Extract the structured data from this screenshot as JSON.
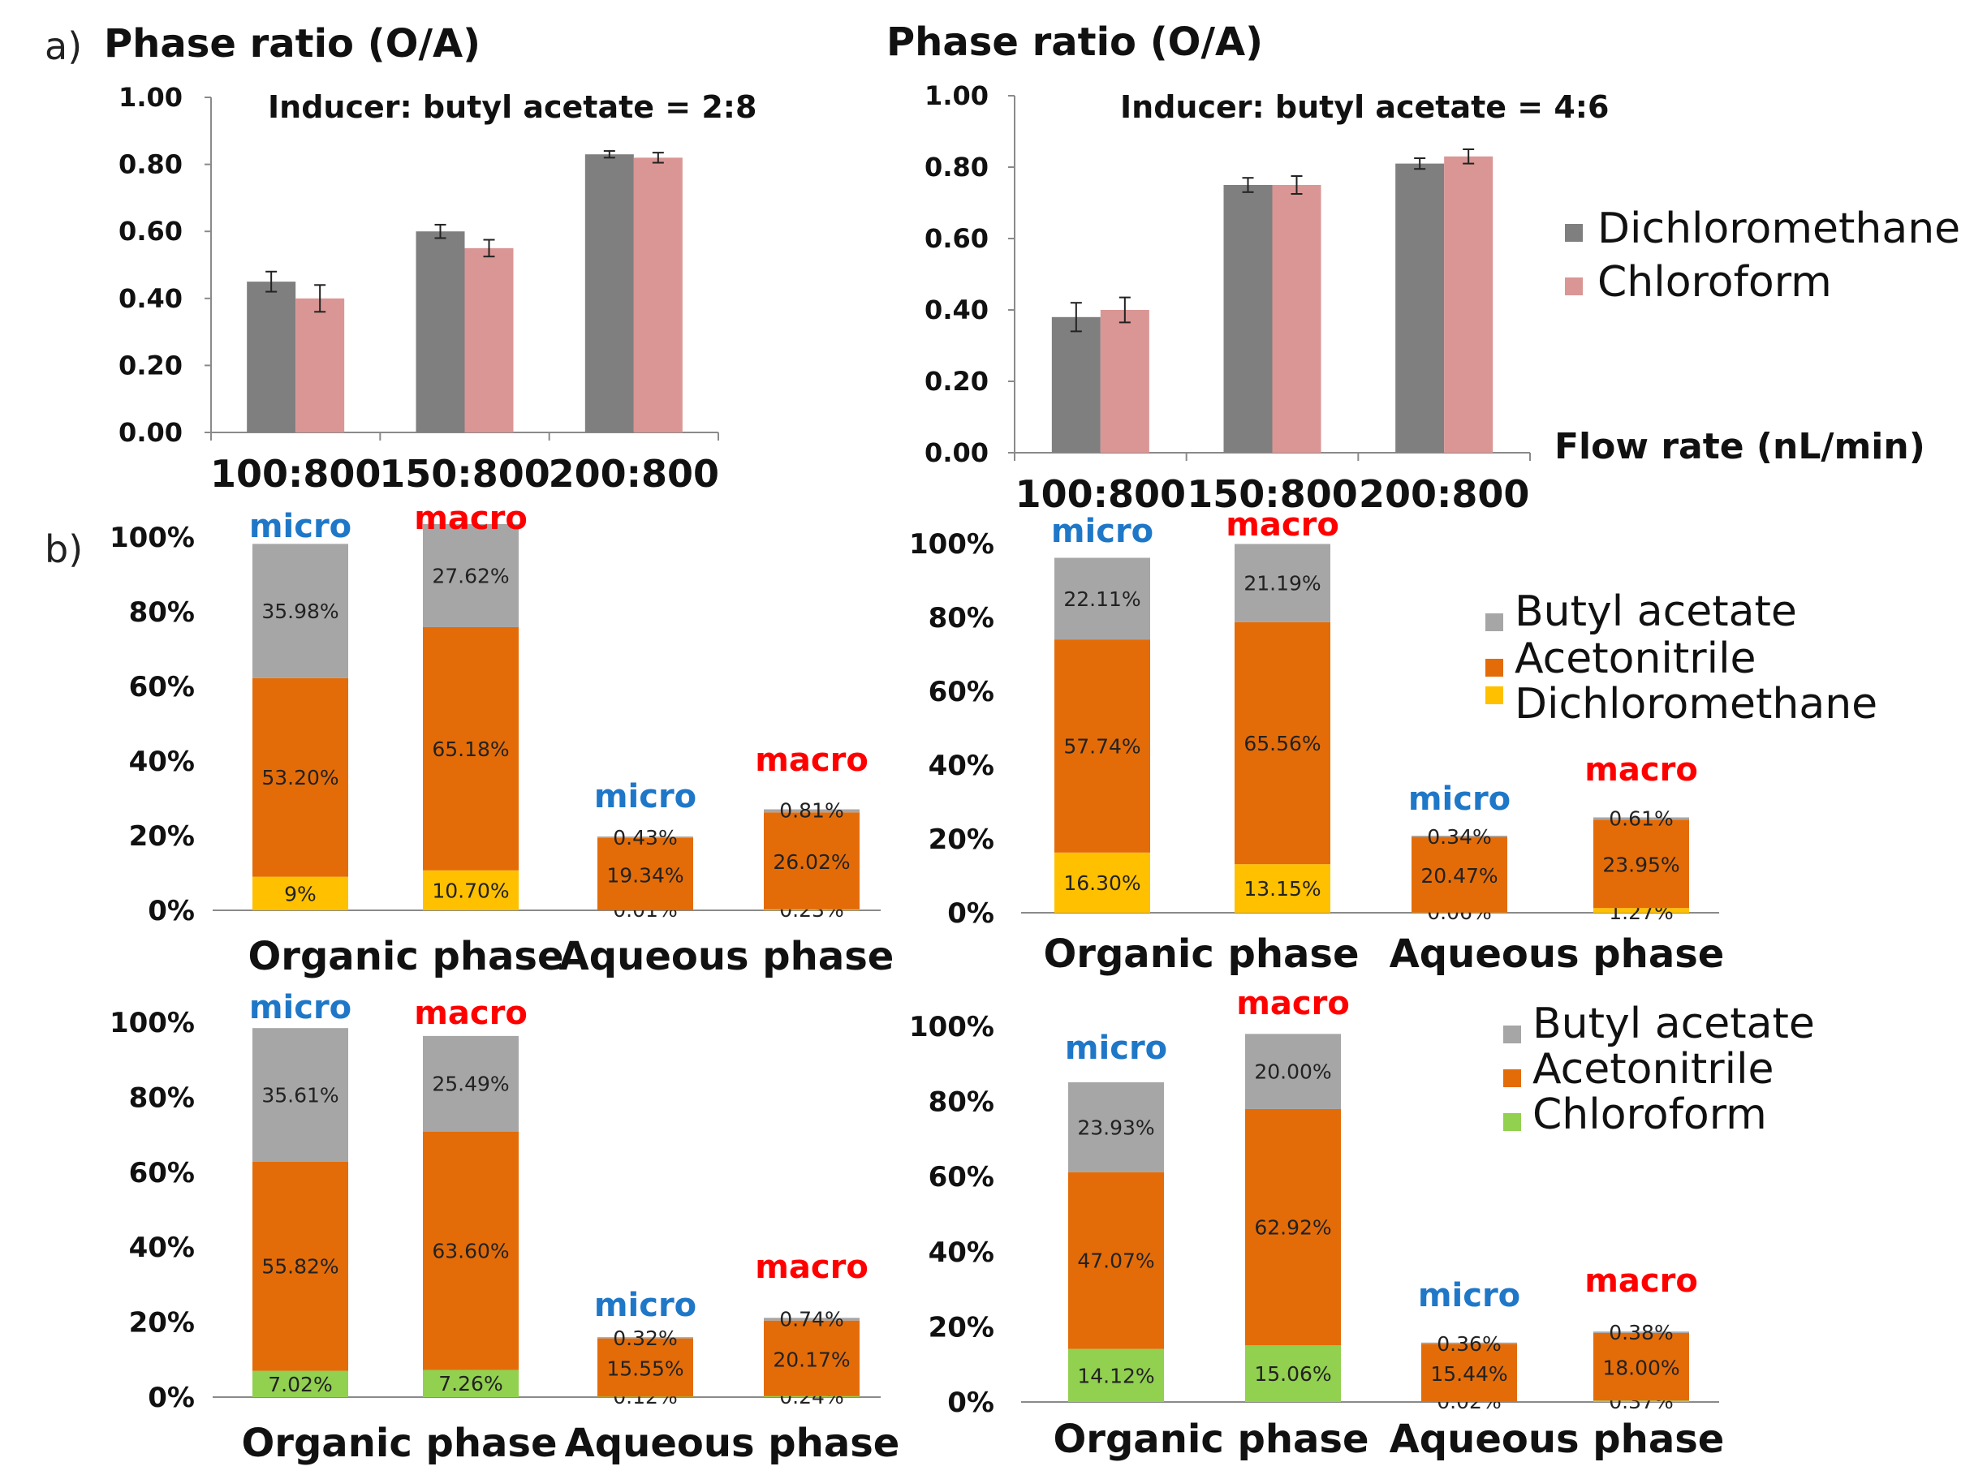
{
  "panel_labels": {
    "a": "a)",
    "b": "b)"
  },
  "colors": {
    "dichloromethane": "#7f7f7f",
    "chloroform": "#d99694",
    "butyl_acetate": "#a6a6a6",
    "acetonitrile": "#e36c09",
    "dcm_stack": "#ffc000",
    "chcl3_stack": "#92d050",
    "micro": "#1f77c8",
    "macro": "#ff0000"
  },
  "legends": {
    "ratio": [
      "Dichloromethane",
      "Chloroform"
    ],
    "comp_dcm": [
      "Butyl acetate",
      "Acetonitrile",
      "Dichloromethane"
    ],
    "comp_chcl3": [
      "Butyl acetate",
      "Acetonitrile",
      "Chloroform"
    ]
  },
  "chart_data": [
    {
      "type": "bar",
      "title": "Phase ratio (O/A)",
      "subtitle": "Inducer: butyl acetate = 2:8",
      "categories": [
        "100:800",
        "150:800",
        "200:800"
      ],
      "series": [
        {
          "name": "Dichloromethane",
          "values": [
            0.45,
            0.6,
            0.83
          ],
          "errors": [
            0.03,
            0.02,
            0.01
          ]
        },
        {
          "name": "Chloroform",
          "values": [
            0.4,
            0.55,
            0.82
          ],
          "errors": [
            0.04,
            0.025,
            0.015
          ]
        }
      ],
      "ylim": [
        0,
        1.0
      ],
      "yticks": [
        "0.00",
        "0.20",
        "0.40",
        "0.60",
        "0.80",
        "1.00"
      ],
      "xlabel": ""
    },
    {
      "type": "bar",
      "title": "Phase ratio (O/A)",
      "subtitle": "Inducer: butyl acetate = 4:6",
      "categories": [
        "100:800",
        "150:800",
        "200:800"
      ],
      "series": [
        {
          "name": "Dichloromethane",
          "values": [
            0.38,
            0.75,
            0.81
          ],
          "errors": [
            0.04,
            0.02,
            0.015
          ]
        },
        {
          "name": "Chloroform",
          "values": [
            0.4,
            0.75,
            0.83
          ],
          "errors": [
            0.035,
            0.025,
            0.02
          ]
        }
      ],
      "ylim": [
        0,
        1.0
      ],
      "yticks": [
        "0.00",
        "0.20",
        "0.40",
        "0.60",
        "0.80",
        "1.00"
      ],
      "xlabel": "Flow rate (nL/min)"
    },
    {
      "type": "bar",
      "stacked": true,
      "solvent": "Dichloromethane",
      "groups": [
        "Organic phase",
        "Aqueous phase"
      ],
      "yticks": [
        "0%",
        "20%",
        "40%",
        "60%",
        "80%",
        "100%"
      ],
      "bars": [
        {
          "tag": "micro",
          "solvent": 9.0,
          "acetonitrile": 53.2,
          "butyl": 35.98,
          "labels": [
            "9%",
            "53.20%",
            "35.98%"
          ]
        },
        {
          "tag": "macro",
          "solvent": 10.7,
          "acetonitrile": 65.18,
          "butyl": 27.62,
          "labels": [
            "10.70%",
            "65.18%",
            "27.62%"
          ]
        },
        {
          "tag": "micro",
          "solvent": 0.01,
          "acetonitrile": 19.34,
          "butyl": 0.43,
          "labels": [
            "0.01%",
            "19.34%",
            "0.43%"
          ]
        },
        {
          "tag": "macro",
          "solvent": 0.23,
          "acetonitrile": 26.02,
          "butyl": 0.81,
          "labels": [
            "0.23%",
            "26.02%",
            "0.81%"
          ]
        }
      ]
    },
    {
      "type": "bar",
      "stacked": true,
      "solvent": "Dichloromethane",
      "groups": [
        "Organic phase",
        "Aqueous phase"
      ],
      "yticks": [
        "0%",
        "20%",
        "40%",
        "60%",
        "80%",
        "100%"
      ],
      "bars": [
        {
          "tag": "micro",
          "solvent": 16.3,
          "acetonitrile": 57.74,
          "butyl": 22.11,
          "labels": [
            "16.30%",
            "57.74%",
            "22.11%"
          ]
        },
        {
          "tag": "macro",
          "solvent": 13.15,
          "acetonitrile": 65.56,
          "butyl": 21.19,
          "labels": [
            "13.15%",
            "65.56%",
            "21.19%"
          ]
        },
        {
          "tag": "micro",
          "solvent": 0.06,
          "acetonitrile": 20.47,
          "butyl": 0.34,
          "labels": [
            "0.06%",
            "20.47%",
            "0.34%"
          ]
        },
        {
          "tag": "macro",
          "solvent": 1.27,
          "acetonitrile": 23.95,
          "butyl": 0.61,
          "labels": [
            "1.27%",
            "23.95%",
            "0.61%"
          ]
        }
      ]
    },
    {
      "type": "bar",
      "stacked": true,
      "solvent": "Chloroform",
      "groups": [
        "Organic phase",
        "Aqueous phase"
      ],
      "yticks": [
        "0%",
        "20%",
        "40%",
        "60%",
        "80%",
        "100%"
      ],
      "bars": [
        {
          "tag": "micro",
          "solvent": 7.02,
          "acetonitrile": 55.82,
          "butyl": 35.61,
          "labels": [
            "7.02%",
            "55.82%",
            "35.61%"
          ]
        },
        {
          "tag": "macro",
          "solvent": 7.26,
          "acetonitrile": 63.6,
          "butyl": 25.49,
          "labels": [
            "7.26%",
            "63.60%",
            "25.49%"
          ]
        },
        {
          "tag": "micro",
          "solvent": 0.12,
          "acetonitrile": 15.55,
          "butyl": 0.32,
          "labels": [
            "0.12%",
            "15.55%",
            "0.32%"
          ]
        },
        {
          "tag": "macro",
          "solvent": 0.24,
          "acetonitrile": 20.17,
          "butyl": 0.74,
          "labels": [
            "0.24%",
            "20.17%",
            "0.74%"
          ]
        }
      ]
    },
    {
      "type": "bar",
      "stacked": true,
      "solvent": "Chloroform",
      "groups": [
        "Organic phase",
        "Aqueous phase"
      ],
      "yticks": [
        "0%",
        "20%",
        "40%",
        "60%",
        "80%",
        "100%"
      ],
      "bars": [
        {
          "tag": "micro",
          "solvent": 14.12,
          "acetonitrile": 47.07,
          "butyl": 23.93,
          "labels": [
            "14.12%",
            "47.07%",
            "23.93%"
          ]
        },
        {
          "tag": "macro",
          "solvent": 15.06,
          "acetonitrile": 62.92,
          "butyl": 20.0,
          "labels": [
            "15.06%",
            "62.92%",
            "20.00%"
          ]
        },
        {
          "tag": "micro",
          "solvent": 0.02,
          "acetonitrile": 15.44,
          "butyl": 0.36,
          "labels": [
            "0.02%",
            "15.44%",
            "0.36%"
          ]
        },
        {
          "tag": "macro",
          "solvent": 0.37,
          "acetonitrile": 18.0,
          "butyl": 0.38,
          "labels": [
            "0.37%",
            "18.00%",
            "0.38%"
          ]
        }
      ]
    }
  ]
}
